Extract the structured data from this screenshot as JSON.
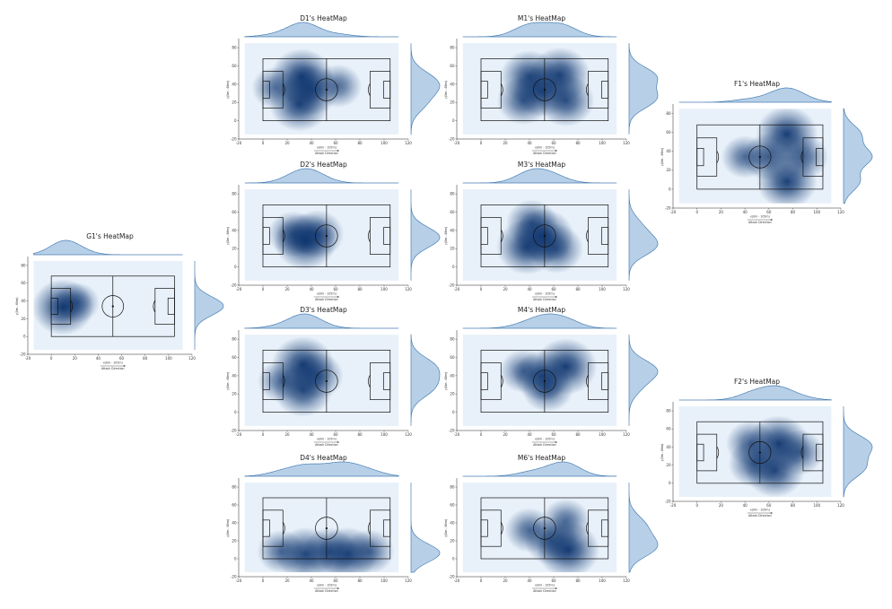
{
  "chart_data": [
    {
      "type": "heatmap",
      "title": "D1's HeatMap",
      "xlabel": "x(0m - 105m)",
      "ylabel": "y(0m - 68m)",
      "attack_label": "Attack Direction",
      "xlim": [
        -20,
        120
      ],
      "ylim": [
        -20,
        90
      ],
      "x_ticks": [
        -20,
        0,
        20,
        40,
        60,
        80,
        100,
        120
      ],
      "y_ticks": [
        -20,
        0,
        20,
        40,
        60,
        80
      ],
      "hotspots": [
        {
          "x": 32,
          "y": 48,
          "intensity": 0.95
        },
        {
          "x": 30,
          "y": 18,
          "intensity": 0.85
        },
        {
          "x": 40,
          "y": 34,
          "intensity": 0.7
        },
        {
          "x": 10,
          "y": 36,
          "intensity": 0.35
        },
        {
          "x": 62,
          "y": 38,
          "intensity": 0.4
        }
      ]
    },
    {
      "type": "heatmap",
      "title": "D2's HeatMap",
      "xlabel": "x(0m - 105m)",
      "ylabel": "y(0m - 68m)",
      "attack_label": "Attack Direction",
      "xlim": [
        -20,
        120
      ],
      "ylim": [
        -20,
        90
      ],
      "x_ticks": [
        -20,
        0,
        20,
        40,
        60,
        80,
        100,
        120
      ],
      "y_ticks": [
        -20,
        0,
        20,
        40,
        60,
        80
      ],
      "hotspots": [
        {
          "x": 35,
          "y": 28,
          "intensity": 0.95
        },
        {
          "x": 45,
          "y": 36,
          "intensity": 0.6
        },
        {
          "x": 25,
          "y": 36,
          "intensity": 0.5
        }
      ]
    },
    {
      "type": "heatmap",
      "title": "D3's HeatMap",
      "xlabel": "x(0m - 105m)",
      "ylabel": "y(0m - 68m)",
      "attack_label": "Attack Direction",
      "xlim": [
        -20,
        120
      ],
      "ylim": [
        -20,
        90
      ],
      "x_ticks": [
        -20,
        0,
        20,
        40,
        60,
        80,
        100,
        120
      ],
      "y_ticks": [
        -20,
        0,
        20,
        40,
        60,
        80
      ],
      "hotspots": [
        {
          "x": 33,
          "y": 52,
          "intensity": 0.95
        },
        {
          "x": 33,
          "y": 24,
          "intensity": 0.8
        },
        {
          "x": 45,
          "y": 40,
          "intensity": 0.55
        },
        {
          "x": 15,
          "y": 34,
          "intensity": 0.35
        }
      ]
    },
    {
      "type": "heatmap",
      "title": "D4's HeatMap",
      "xlabel": "x(0m - 105m)",
      "ylabel": "y(0m - 68m)",
      "attack_label": "Attack Direction",
      "xlim": [
        -20,
        120
      ],
      "ylim": [
        -20,
        90
      ],
      "x_ticks": [
        -20,
        0,
        20,
        40,
        60,
        80,
        100,
        120
      ],
      "y_ticks": [
        -20,
        0,
        20,
        40,
        60,
        80
      ],
      "hotspots": [
        {
          "x": 35,
          "y": 5,
          "intensity": 0.85
        },
        {
          "x": 70,
          "y": 5,
          "intensity": 0.85
        },
        {
          "x": 55,
          "y": 8,
          "intensity": 0.6
        },
        {
          "x": 15,
          "y": 8,
          "intensity": 0.4
        },
        {
          "x": 88,
          "y": 8,
          "intensity": 0.45
        }
      ]
    },
    {
      "type": "heatmap",
      "title": "M1's HeatMap",
      "xlabel": "x(0m - 105m)",
      "ylabel": "y(0m - 68m)",
      "attack_label": "Attack Direction",
      "xlim": [
        -20,
        120
      ],
      "ylim": [
        -20,
        90
      ],
      "x_ticks": [
        -20,
        0,
        20,
        40,
        60,
        80,
        100,
        120
      ],
      "y_ticks": [
        -20,
        0,
        20,
        40,
        60,
        80
      ],
      "hotspots": [
        {
          "x": 40,
          "y": 48,
          "intensity": 0.8
        },
        {
          "x": 65,
          "y": 50,
          "intensity": 0.9
        },
        {
          "x": 50,
          "y": 32,
          "intensity": 0.7
        },
        {
          "x": 70,
          "y": 22,
          "intensity": 0.75
        },
        {
          "x": 35,
          "y": 22,
          "intensity": 0.6
        }
      ]
    },
    {
      "type": "heatmap",
      "title": "M3's HeatMap",
      "xlabel": "x(0m - 105m)",
      "ylabel": "y(0m - 68m)",
      "attack_label": "Attack Direction",
      "xlim": [
        -20,
        120
      ],
      "ylim": [
        -20,
        90
      ],
      "x_ticks": [
        -20,
        0,
        20,
        40,
        60,
        80,
        100,
        120
      ],
      "y_ticks": [
        -20,
        0,
        20,
        40,
        60,
        80
      ],
      "hotspots": [
        {
          "x": 38,
          "y": 22,
          "intensity": 0.9
        },
        {
          "x": 52,
          "y": 34,
          "intensity": 0.85
        },
        {
          "x": 62,
          "y": 20,
          "intensity": 0.65
        },
        {
          "x": 42,
          "y": 48,
          "intensity": 0.55
        }
      ]
    },
    {
      "type": "heatmap",
      "title": "M4's HeatMap",
      "xlabel": "x(0m - 105m)",
      "ylabel": "y(0m - 68m)",
      "attack_label": "Attack Direction",
      "xlim": [
        -20,
        120
      ],
      "ylim": [
        -20,
        90
      ],
      "x_ticks": [
        -20,
        0,
        20,
        40,
        60,
        80,
        100,
        120
      ],
      "y_ticks": [
        -20,
        0,
        20,
        40,
        60,
        80
      ],
      "hotspots": [
        {
          "x": 70,
          "y": 50,
          "intensity": 0.95
        },
        {
          "x": 50,
          "y": 40,
          "intensity": 0.7
        },
        {
          "x": 55,
          "y": 26,
          "intensity": 0.55
        },
        {
          "x": 35,
          "y": 45,
          "intensity": 0.4
        }
      ]
    },
    {
      "type": "heatmap",
      "title": "M6's HeatMap",
      "xlabel": "x(0m - 105m)",
      "ylabel": "y(0m - 68m)",
      "attack_label": "Attack Direction",
      "xlim": [
        -20,
        120
      ],
      "ylim": [
        -20,
        90
      ],
      "x_ticks": [
        -20,
        0,
        20,
        40,
        60,
        80,
        100,
        120
      ],
      "y_ticks": [
        -20,
        0,
        20,
        40,
        60,
        80
      ],
      "hotspots": [
        {
          "x": 72,
          "y": 10,
          "intensity": 0.95
        },
        {
          "x": 58,
          "y": 20,
          "intensity": 0.6
        },
        {
          "x": 40,
          "y": 32,
          "intensity": 0.45
        },
        {
          "x": 70,
          "y": 42,
          "intensity": 0.45
        }
      ]
    },
    {
      "type": "heatmap",
      "title": "G1's HeatMap",
      "xlabel": "x(0m - 105m)",
      "ylabel": "y(0m - 68m)",
      "attack_label": "Attack Direction",
      "xlim": [
        -20,
        120
      ],
      "ylim": [
        -20,
        90
      ],
      "x_ticks": [
        -20,
        0,
        20,
        40,
        60,
        80,
        100,
        120
      ],
      "y_ticks": [
        -20,
        0,
        20,
        40,
        60,
        80
      ],
      "hotspots": [
        {
          "x": 10,
          "y": 33,
          "intensity": 1.0
        },
        {
          "x": 22,
          "y": 38,
          "intensity": 0.35
        }
      ]
    },
    {
      "type": "heatmap",
      "title": "F1's HeatMap",
      "xlabel": "x(0m - 105m)",
      "ylabel": "y(0m - 68m)",
      "attack_label": "Attack Direction",
      "xlim": [
        -20,
        120
      ],
      "ylim": [
        -20,
        90
      ],
      "x_ticks": [
        -20,
        0,
        20,
        40,
        60,
        80,
        100,
        120
      ],
      "y_ticks": [
        -20,
        0,
        20,
        40,
        60,
        80
      ],
      "hotspots": [
        {
          "x": 75,
          "y": 58,
          "intensity": 0.95
        },
        {
          "x": 75,
          "y": 8,
          "intensity": 0.9
        },
        {
          "x": 60,
          "y": 34,
          "intensity": 0.6
        },
        {
          "x": 88,
          "y": 34,
          "intensity": 0.55
        },
        {
          "x": 40,
          "y": 34,
          "intensity": 0.4
        }
      ]
    },
    {
      "type": "heatmap",
      "title": "F2's HeatMap",
      "xlabel": "x(0m - 105m)",
      "ylabel": "y(0m - 68m)",
      "attack_label": "Attack Direction",
      "xlim": [
        -20,
        120
      ],
      "ylim": [
        -20,
        90
      ],
      "x_ticks": [
        -20,
        0,
        20,
        40,
        60,
        80,
        100,
        120
      ],
      "y_ticks": [
        -20,
        0,
        20,
        40,
        60,
        80
      ],
      "hotspots": [
        {
          "x": 68,
          "y": 44,
          "intensity": 0.95
        },
        {
          "x": 65,
          "y": 14,
          "intensity": 0.85
        },
        {
          "x": 48,
          "y": 22,
          "intensity": 0.6
        },
        {
          "x": 85,
          "y": 34,
          "intensity": 0.5
        },
        {
          "x": 45,
          "y": 44,
          "intensity": 0.5
        }
      ]
    }
  ],
  "colors": {
    "background": "#e8f1fa",
    "density": "#08306b",
    "marginal_fill": "#b7d0e8",
    "marginal_line": "#4a7fb4",
    "pitch_lines": "#111111"
  }
}
